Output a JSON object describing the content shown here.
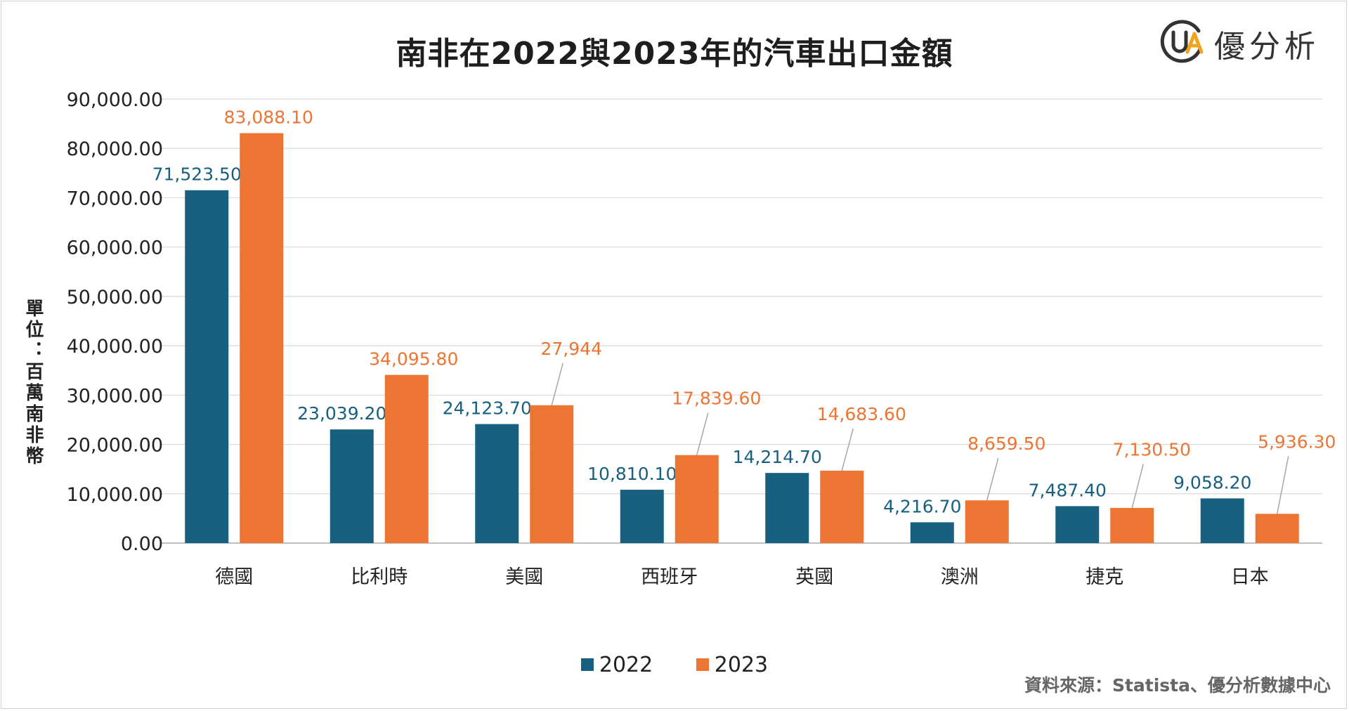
{
  "title": "南非在2022與2023年的汽車出口金額",
  "logo": {
    "text": "優分析",
    "mark": "UA"
  },
  "y_axis_label": "單位：百萬南非幣",
  "source": "資料來源：Statista、優分析數據中心",
  "colors": {
    "s2022": "#17607f",
    "s2023": "#ec7534",
    "grid": "#d9d9d9",
    "axis": "#bfbfbf",
    "leader": "#a6a6a6"
  },
  "chart_data": {
    "type": "bar",
    "categories": [
      "德國",
      "比利時",
      "美國",
      "西班牙",
      "英國",
      "澳洲",
      "捷克",
      "日本"
    ],
    "series": [
      {
        "name": "2022",
        "values": [
          71523.5,
          23039.2,
          24123.7,
          10810.1,
          14214.7,
          4216.7,
          7487.4,
          9058.2
        ],
        "labels": [
          "71,523.50",
          "23,039.20",
          "24,123.70",
          "10,810.10",
          "14,214.70",
          "4,216.70",
          "7,487.40",
          "9,058.20"
        ]
      },
      {
        "name": "2023",
        "values": [
          83088.1,
          34095.8,
          27944,
          17839.6,
          14683.6,
          8659.5,
          7130.5,
          5936.3
        ],
        "labels": [
          "83,088.10",
          "34,095.80",
          "27,944",
          "17,839.60",
          "14,683.60",
          "8,659.50",
          "7,130.50",
          "5,936.30"
        ]
      }
    ],
    "y_ticks": [
      "0.00",
      "10,000.00",
      "20,000.00",
      "30,000.00",
      "40,000.00",
      "50,000.00",
      "60,000.00",
      "70,000.00",
      "80,000.00",
      "90,000.00"
    ],
    "ylim": [
      0,
      90000
    ],
    "grid": true,
    "legend_position": "bottom"
  }
}
